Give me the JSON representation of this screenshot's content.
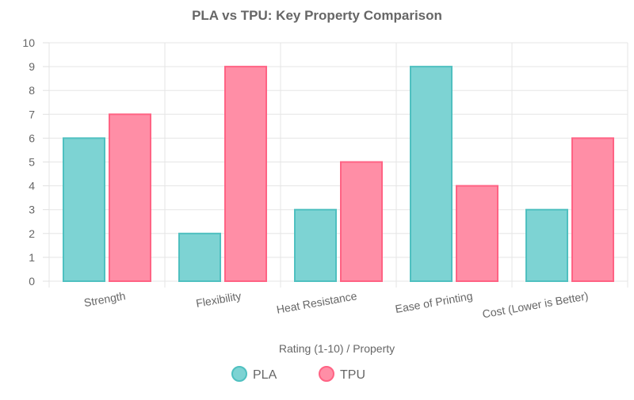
{
  "chart_data": {
    "type": "bar",
    "title": "PLA vs TPU: Key Property Comparison",
    "xlabel": "Rating (1-10) / Property",
    "ylabel": "",
    "ylim": [
      0,
      10
    ],
    "y_ticks": [
      "0",
      "1",
      "2",
      "3",
      "4",
      "5",
      "6",
      "7",
      "8",
      "9",
      "10"
    ],
    "categories": [
      "Strength",
      "Flexibility",
      "Heat Resistance",
      "Ease of Printing",
      "Cost (Lower is Better)"
    ],
    "series": [
      {
        "name": "PLA",
        "values": [
          6,
          2,
          3,
          9,
          3
        ],
        "color": "#7dd3d3",
        "border_color": "#4fc0c0"
      },
      {
        "name": "TPU",
        "values": [
          7,
          9,
          5,
          4,
          6
        ],
        "color": "#ff8ea6",
        "border_color": "#ff6384"
      }
    ],
    "grid": true,
    "legend_position": "bottom"
  }
}
